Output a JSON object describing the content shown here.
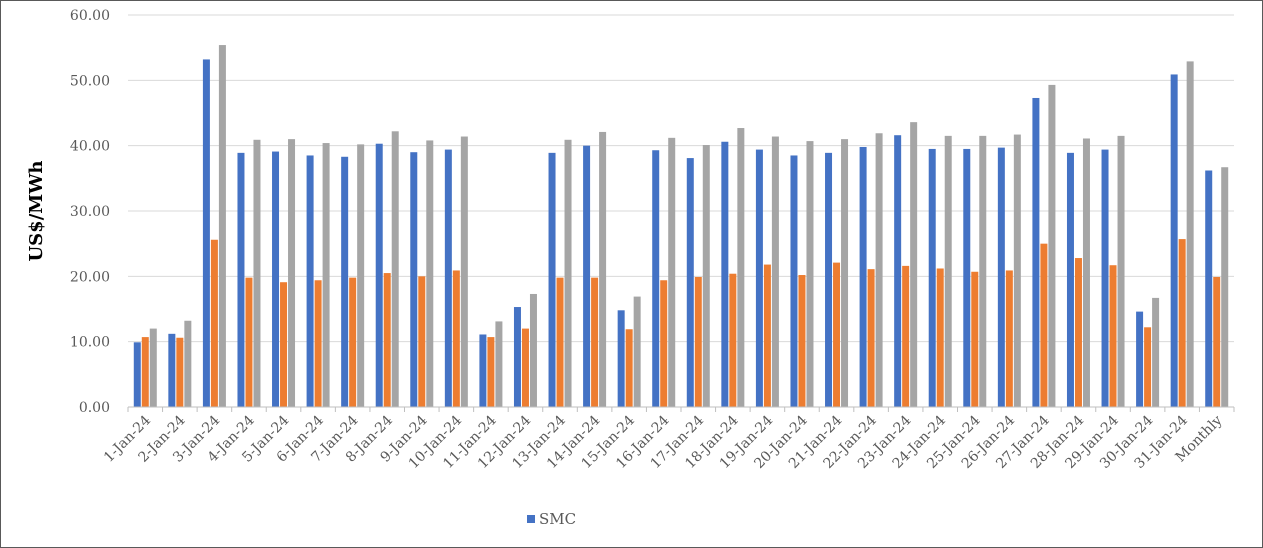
{
  "chart_data": {
    "type": "bar",
    "ylabel": "US$/MWh",
    "ylim": [
      0,
      60
    ],
    "yticks": [
      "0.00",
      "10.00",
      "20.00",
      "30.00",
      "40.00",
      "50.00",
      "60.00"
    ],
    "grid": true,
    "legend_position": "bottom",
    "categories": [
      "1-Jan-24",
      "2-Jan-24",
      "3-Jan-24",
      "4-Jan-24",
      "5-Jan-24",
      "6-Jan-24",
      "7-Jan-24",
      "8-Jan-24",
      "9-Jan-24",
      "10-Jan-24",
      "11-Jan-24",
      "12-Jan-24",
      "13-Jan-24",
      "14-Jan-24",
      "15-Jan-24",
      "16-Jan-24",
      "17-Jan-24",
      "18-Jan-24",
      "19-Jan-24",
      "20-Jan-24",
      "21-Jan-24",
      "22-Jan-24",
      "23-Jan-24",
      "24-Jan-24",
      "25-Jan-24",
      "26-Jan-24",
      "27-Jan-24",
      "28-Jan-24",
      "29-Jan-24",
      "30-Jan-24",
      "31-Jan-24",
      "Monthly"
    ],
    "series": [
      {
        "name": "SMC",
        "color": "#4472C4",
        "values": [
          9.9,
          11.2,
          53.2,
          38.9,
          39.1,
          38.5,
          38.3,
          40.3,
          39.0,
          39.4,
          11.1,
          15.3,
          38.9,
          40.0,
          14.8,
          39.3,
          38.1,
          40.6,
          39.4,
          38.5,
          38.9,
          39.8,
          41.6,
          39.5,
          39.5,
          39.7,
          47.3,
          38.9,
          39.4,
          14.6,
          50.9,
          36.2
        ]
      },
      {
        "color": "#ED7D31",
        "values": [
          10.7,
          10.6,
          25.6,
          19.8,
          19.1,
          19.4,
          19.8,
          20.5,
          20.0,
          20.9,
          10.7,
          12.0,
          19.8,
          19.8,
          11.9,
          19.4,
          19.9,
          20.4,
          21.8,
          20.2,
          22.1,
          21.1,
          21.6,
          21.2,
          20.7,
          20.9,
          25.0,
          22.8,
          21.7,
          12.2,
          25.7,
          19.9
        ]
      },
      {
        "color": "#A5A5A5",
        "values": [
          12.0,
          13.2,
          55.4,
          40.9,
          41.0,
          40.4,
          40.2,
          42.2,
          40.8,
          41.4,
          13.1,
          17.3,
          40.9,
          42.1,
          16.9,
          41.2,
          40.1,
          42.7,
          41.4,
          40.7,
          41.0,
          41.9,
          43.6,
          41.5,
          41.5,
          41.7,
          49.3,
          41.1,
          41.5,
          16.7,
          52.9,
          36.7
        ]
      }
    ]
  }
}
